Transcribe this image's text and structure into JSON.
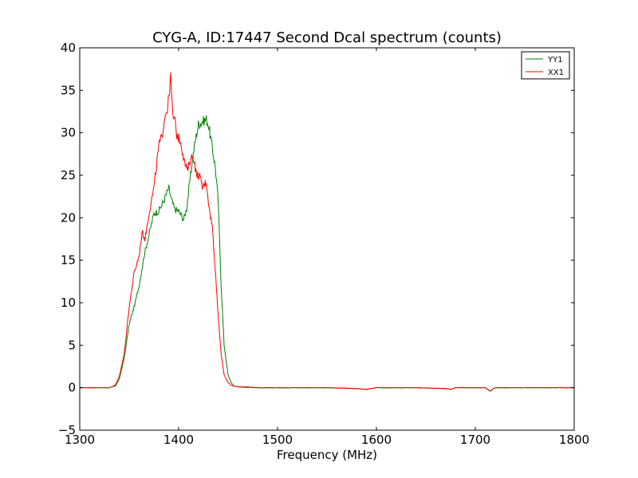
{
  "chart_data": {
    "type": "line",
    "title": "CYG-A, ID:17447 Second Dcal spectrum (counts)",
    "xlabel": "Frequency (MHz)",
    "ylabel": "",
    "xlim": [
      1300,
      1800
    ],
    "ylim": [
      -5,
      40
    ],
    "xticks": [
      1300,
      1400,
      1500,
      1600,
      1700,
      1800
    ],
    "yticks": [
      -5,
      0,
      5,
      10,
      15,
      20,
      25,
      30,
      35,
      40
    ],
    "grid": false,
    "legend": "top-right",
    "series": [
      {
        "name": "YY1",
        "color": "#008000",
        "x": [
          1300,
          1330,
          1336,
          1340,
          1345,
          1350,
          1355,
          1360,
          1365,
          1370,
          1375,
          1380,
          1385,
          1390,
          1393,
          1396,
          1400,
          1405,
          1408,
          1412,
          1416,
          1420,
          1424,
          1428,
          1430,
          1433,
          1437,
          1440,
          1443,
          1446,
          1450,
          1453,
          1456,
          1460,
          1465,
          1470,
          1480,
          1500,
          1550,
          1580,
          1590,
          1600,
          1640,
          1670,
          1675,
          1680,
          1710,
          1715,
          1720,
          1750,
          1800
        ],
        "y": [
          0,
          0,
          0.2,
          1.0,
          3.5,
          7.5,
          9.5,
          12.0,
          15.5,
          18.0,
          20.5,
          20.8,
          22.0,
          23.5,
          22.0,
          21.0,
          20.8,
          19.8,
          21.0,
          25.0,
          28.5,
          31.0,
          31.3,
          31.6,
          31.0,
          29.0,
          26.0,
          22.0,
          12.0,
          5.0,
          1.5,
          0.6,
          0.2,
          0.1,
          0.05,
          0.05,
          0,
          0,
          0,
          -0.1,
          -0.2,
          0,
          0,
          -0.1,
          -0.2,
          0,
          0,
          -0.4,
          0,
          0,
          0
        ]
      },
      {
        "name": "XX1",
        "color": "#ff0000",
        "x": [
          1300,
          1330,
          1336,
          1340,
          1345,
          1350,
          1355,
          1360,
          1363,
          1366,
          1370,
          1375,
          1380,
          1383,
          1386,
          1389,
          1392,
          1394,
          1396,
          1398,
          1402,
          1406,
          1409,
          1412,
          1415,
          1418,
          1421,
          1424,
          1428,
          1431,
          1434,
          1437,
          1440,
          1443,
          1446,
          1450,
          1453,
          1456,
          1460,
          1465,
          1470,
          1475,
          1480,
          1500,
          1550,
          1580,
          1590,
          1600,
          1640,
          1670,
          1675,
          1680,
          1710,
          1715,
          1720,
          1750,
          1800
        ],
        "y": [
          0,
          0,
          0.3,
          1.3,
          4.0,
          9.5,
          13.5,
          15.5,
          18.3,
          17.5,
          20.5,
          23.5,
          28.5,
          29.5,
          32.0,
          33.0,
          36.5,
          32.0,
          31.5,
          29.8,
          29.0,
          26.5,
          25.5,
          27.0,
          27.2,
          25.0,
          25.0,
          23.5,
          24.3,
          21.0,
          19.0,
          14.0,
          8.5,
          4.0,
          1.5,
          0.6,
          0.3,
          0.2,
          0.1,
          0.1,
          0.1,
          0.05,
          0,
          0,
          0,
          -0.1,
          -0.2,
          0,
          0,
          -0.1,
          -0.2,
          0,
          0,
          -0.4,
          0,
          0,
          0
        ]
      }
    ]
  }
}
